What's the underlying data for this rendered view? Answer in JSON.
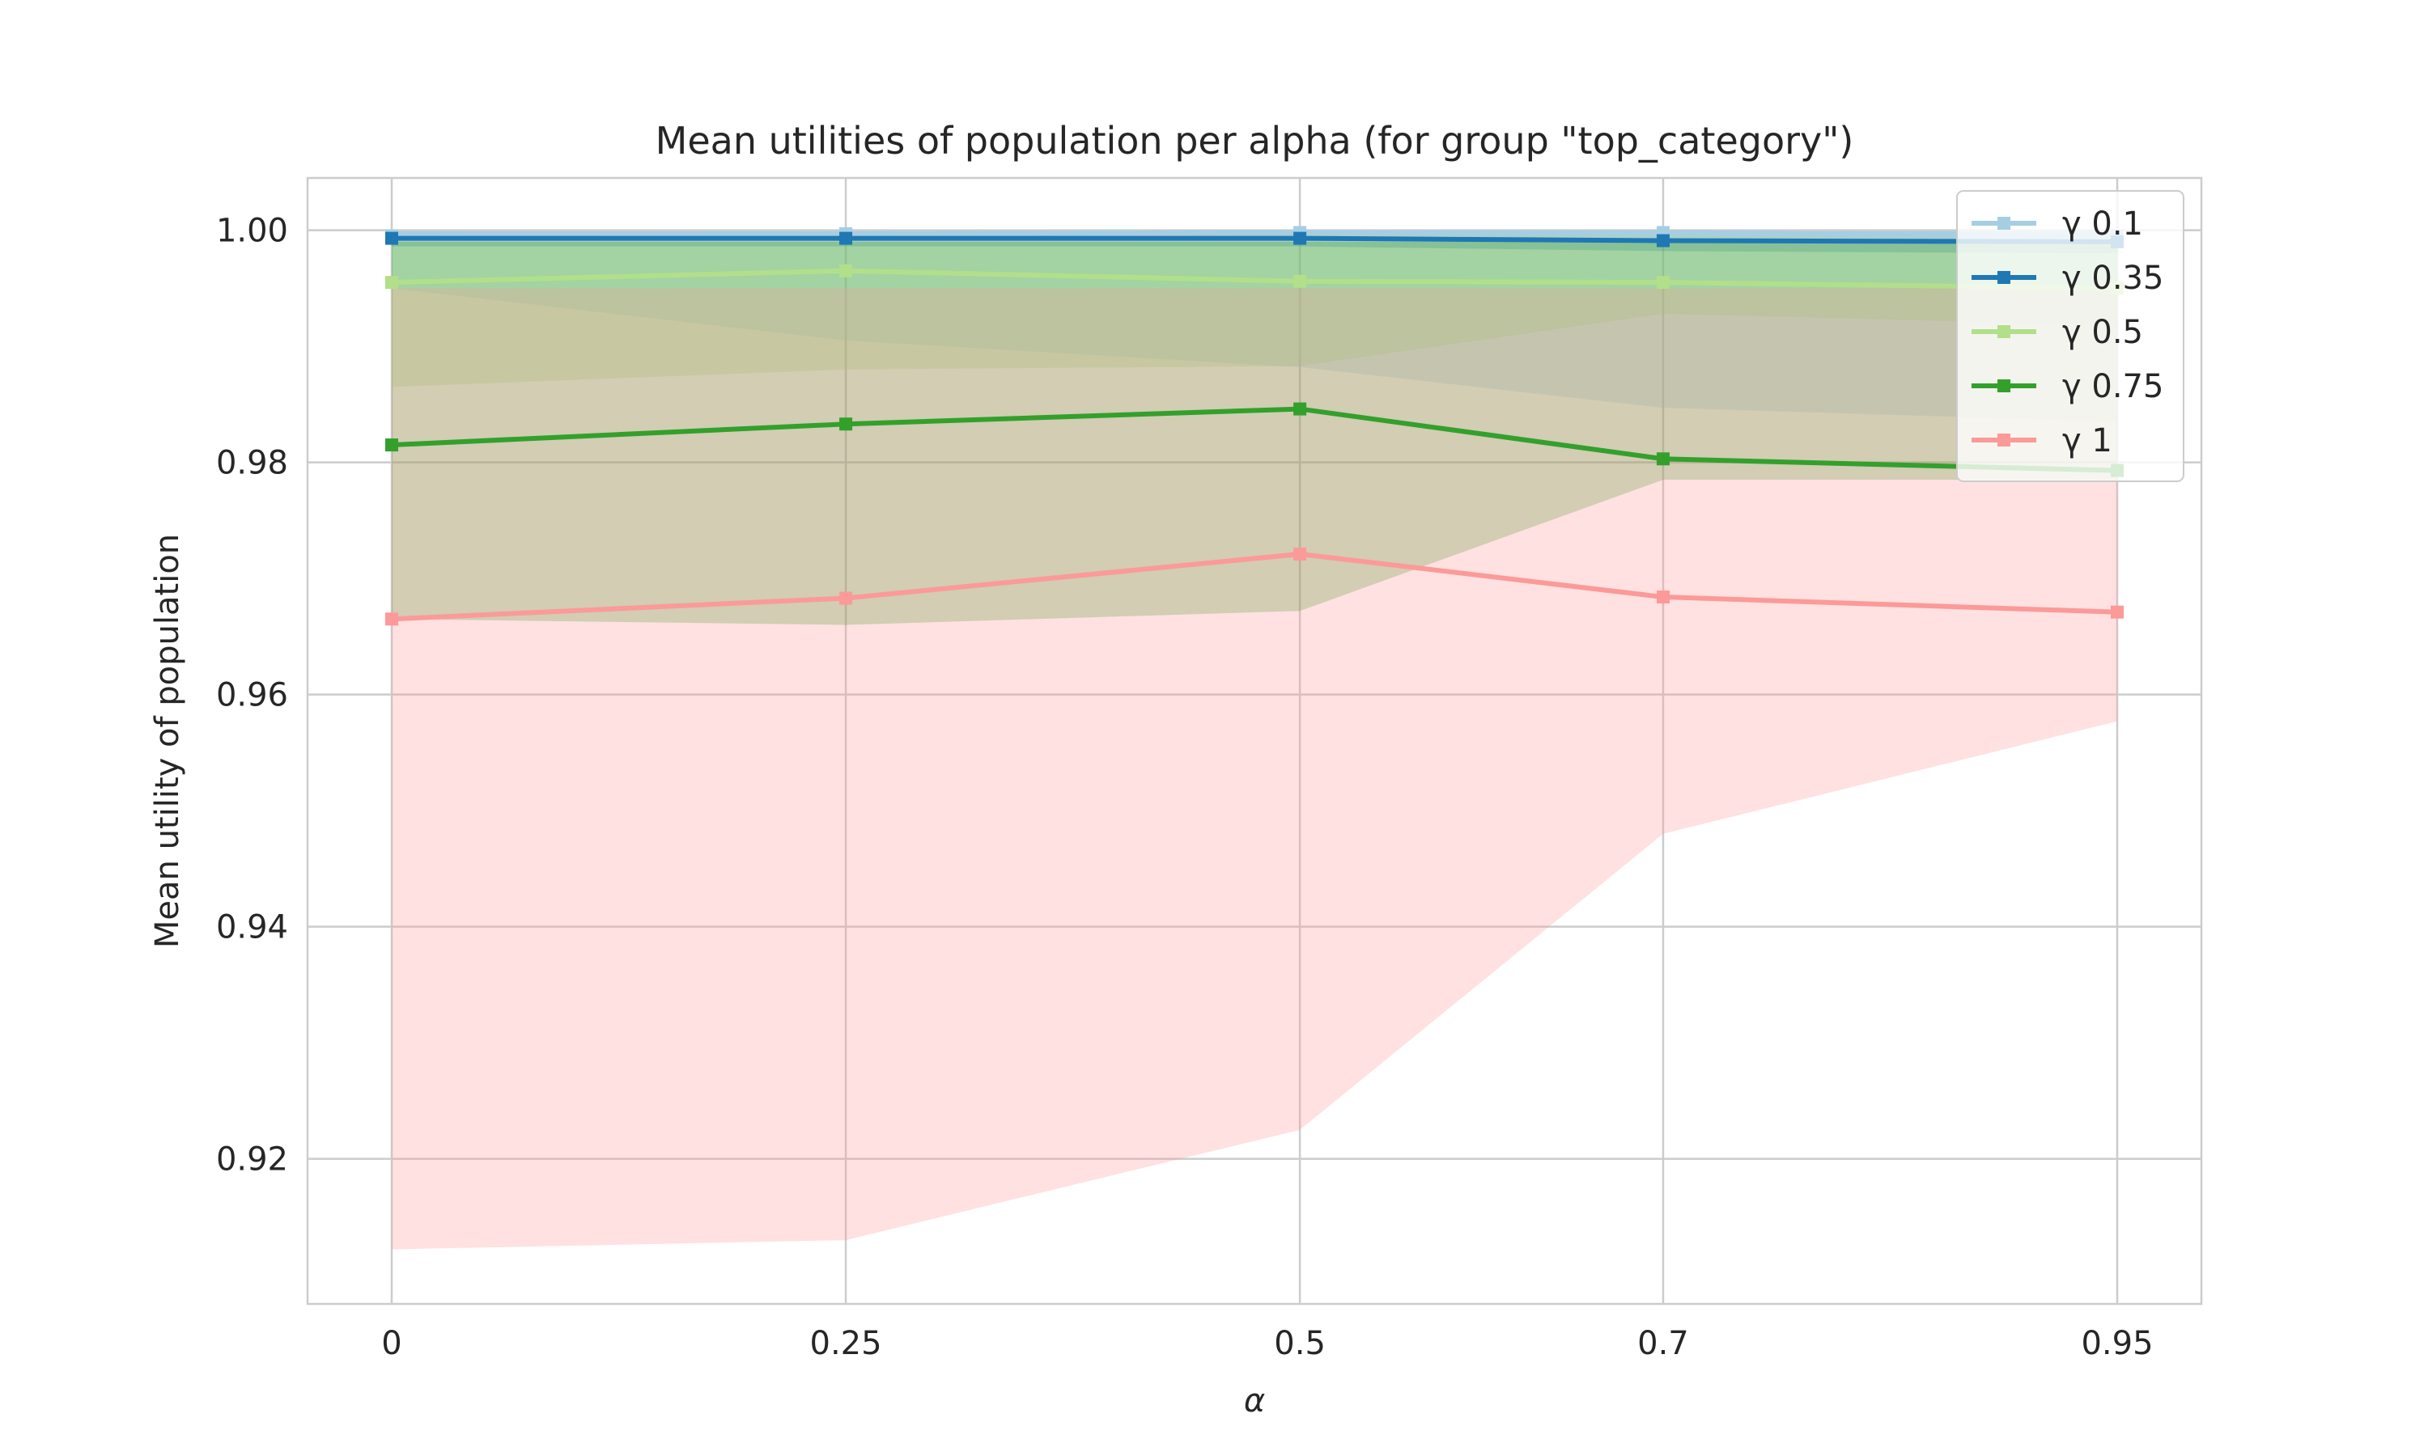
{
  "chart_data": {
    "type": "line",
    "title": "Mean utilities of population per alpha (for group \"top_category\")",
    "xlabel": "α",
    "ylabel": "Mean utility of population",
    "categories": [
      "0",
      "0.25",
      "0.5",
      "0.7",
      "0.95"
    ],
    "x_ticks": [
      "0",
      "0.25",
      "0.5",
      "0.7",
      "0.95"
    ],
    "y_ticks": [
      "0.92",
      "0.94",
      "0.96",
      "0.98",
      "1.00"
    ],
    "ylim": [
      0.9075,
      1.0045
    ],
    "grid": true,
    "legend_position": "top-right",
    "series": [
      {
        "name": "γ 0.1",
        "color": "#a6cee3",
        "values": [
          0.9995,
          0.9997,
          0.9998,
          0.9998,
          0.9995
        ],
        "band_low": [
          0.995,
          0.9905,
          0.9882,
          0.9847,
          0.9835
        ],
        "band_high": [
          1.0,
          1.0,
          1.0,
          1.0,
          1.0
        ]
      },
      {
        "name": "γ 0.35",
        "color": "#1f78b4",
        "values": [
          0.9993,
          0.9993,
          0.9993,
          0.9991,
          0.999
        ],
        "band_low": [
          0.9986,
          0.9986,
          0.9986,
          0.9982,
          0.998
        ],
        "band_high": [
          0.9999,
          0.9999,
          0.9999,
          0.9999,
          0.9999
        ]
      },
      {
        "name": "γ 0.5",
        "color": "#b2df8a",
        "values": [
          0.9955,
          0.9965,
          0.9956,
          0.9955,
          0.995
        ],
        "band_low": [
          0.9865,
          0.988,
          0.9883,
          0.9928,
          0.9918
        ],
        "band_high": [
          0.9995,
          0.9998,
          0.9998,
          0.9998,
          0.9998
        ]
      },
      {
        "name": "γ 0.75",
        "color": "#33a02c",
        "values": [
          0.9815,
          0.9833,
          0.9846,
          0.9803,
          0.9793
        ],
        "band_low": [
          0.9665,
          0.966,
          0.9672,
          0.9785,
          0.9785
        ],
        "band_high": [
          0.999,
          0.999,
          0.999,
          0.999,
          0.999
        ]
      },
      {
        "name": "γ 1",
        "color": "#fb9a99",
        "values": [
          0.9665,
          0.9683,
          0.9721,
          0.9684,
          0.9671
        ],
        "band_low": [
          0.9122,
          0.913,
          0.9225,
          0.948,
          0.9577
        ],
        "band_high": [
          0.995,
          0.995,
          0.995,
          0.995,
          0.995
        ]
      }
    ]
  }
}
